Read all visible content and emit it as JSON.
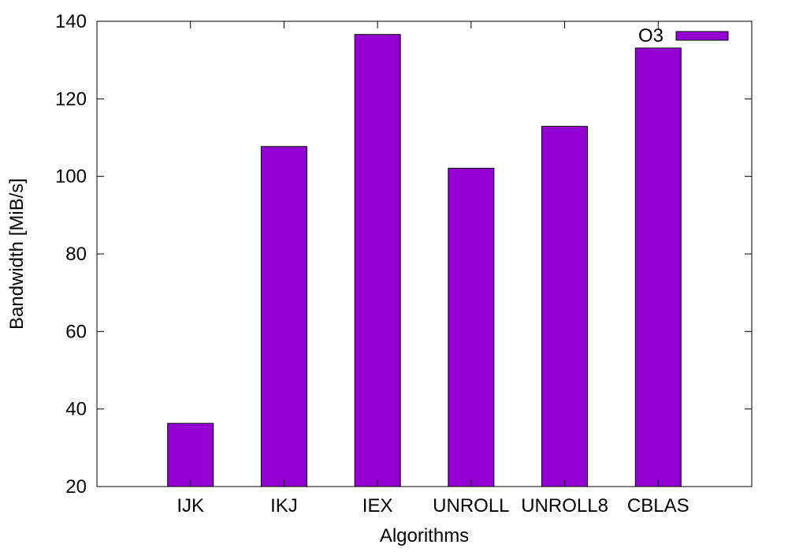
{
  "chart_data": {
    "type": "bar",
    "xlabel": "Algorithms",
    "ylabel": "Bandwidth [MiB/s]",
    "ylim": [
      20,
      140
    ],
    "yticks": [
      20,
      40,
      60,
      80,
      100,
      120,
      140
    ],
    "categories": [
      "IJK",
      "IKJ",
      "IEX",
      "UNROLL",
      "UNROLL8",
      "CBLAS"
    ],
    "series": [
      {
        "name": "O3",
        "color": "#9400d3",
        "values": [
          36.3,
          107.7,
          136.6,
          102.1,
          112.9,
          133.1
        ]
      }
    ],
    "legend_position": "top-right",
    "grid": false
  }
}
